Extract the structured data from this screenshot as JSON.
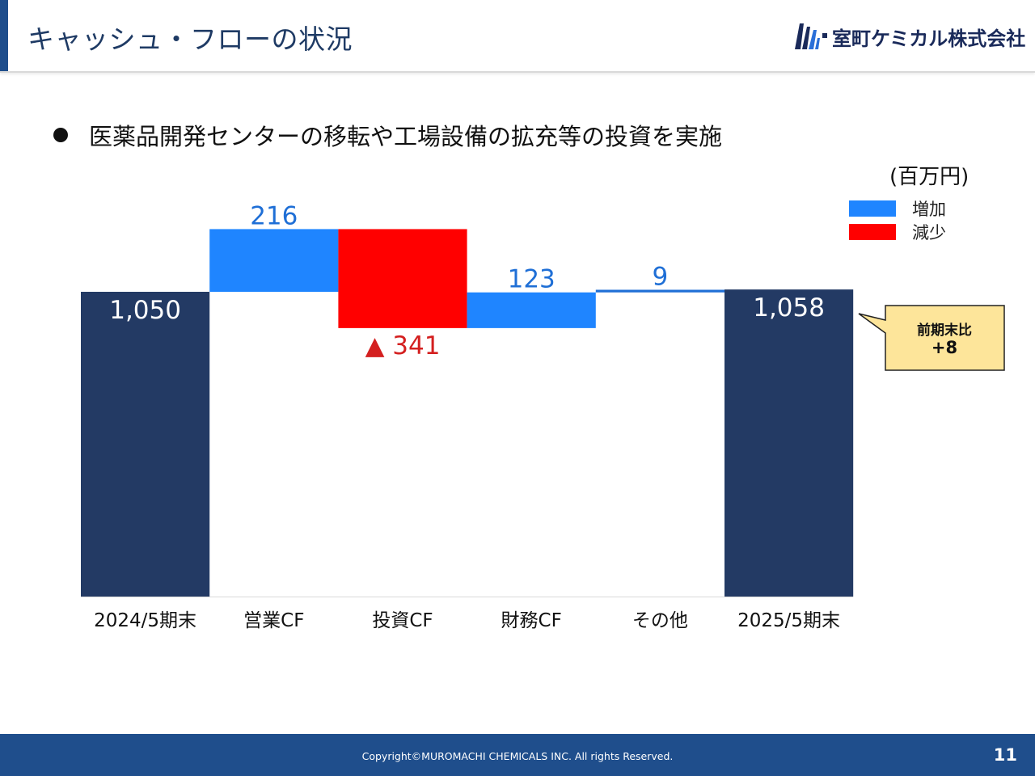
{
  "header": {
    "title": "キャッシュ・フローの状況",
    "company_name": "室町ケミカル株式会社"
  },
  "bullet": "医薬品開発センターの移転や工場設備の拡充等の投資を実施",
  "unit_label": "(百万円)",
  "legend": [
    {
      "label": "増加",
      "color": "#1f85ff"
    },
    {
      "label": "減少",
      "color": "#ff0000"
    }
  ],
  "callout": {
    "label": "前期末比",
    "value": "+8"
  },
  "colors": {
    "total": "#233a64",
    "increase": "#1f85ff",
    "decrease": "#ff0000",
    "increase_label": "#1f6fd6",
    "decrease_label": "#d42020",
    "accent": "#1f4e8c"
  },
  "chart_data": {
    "type": "bar",
    "subtype": "waterfall",
    "categories": [
      "2024/5期末",
      "営業CF",
      "投資CF",
      "財務CF",
      "その他",
      "2025/5期末"
    ],
    "steps": [
      {
        "kind": "total",
        "value": 1050,
        "label": "1,050"
      },
      {
        "kind": "increase",
        "value": 216,
        "label": "216"
      },
      {
        "kind": "decrease",
        "value": -341,
        "label": "▲ 341"
      },
      {
        "kind": "increase",
        "value": 123,
        "label": "123"
      },
      {
        "kind": "increase",
        "value": 9,
        "label": "9"
      },
      {
        "kind": "total",
        "value": 1058,
        "label": "1,058"
      }
    ],
    "ylim": [
      0,
      1270
    ],
    "grid": false,
    "legend_position": "top-right"
  },
  "footer": {
    "copyright": "Copyright©MUROMACHI CHEMICALS INC. All rights Reserved.",
    "page_number": "11"
  }
}
